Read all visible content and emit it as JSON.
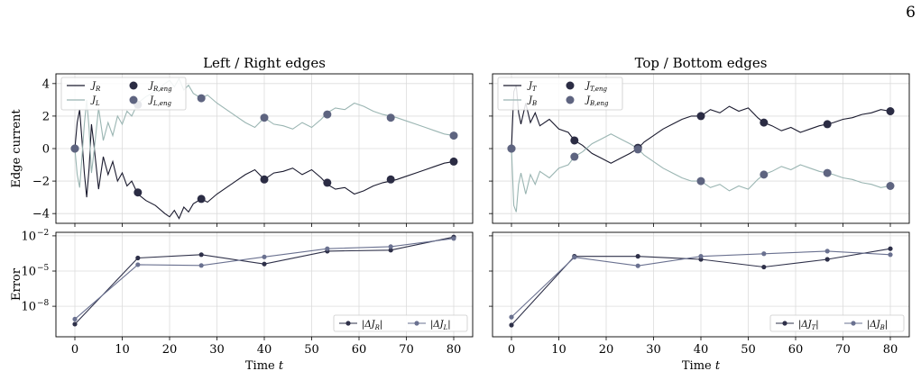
{
  "page_number": "6",
  "colors": {
    "series_dark": "#1a1a2e",
    "series_light": "#9ab5b2",
    "eng_dark": "#2b2c44",
    "eng_light": "#5e6480",
    "err_dark": "#2e3049",
    "err_light": "#6a7190",
    "grid": "#dcdcdc"
  },
  "chart_data": [
    {
      "type": "line",
      "panel": "top-left",
      "title": "Left / Right edges",
      "ylabel": "Edge current",
      "xlim": [
        -4,
        84
      ],
      "ylim": [
        -4.6,
        4.6
      ],
      "yticks": [
        -4,
        -2,
        0,
        2,
        4
      ],
      "ytick_labels": [
        "−4",
        "−2",
        "0",
        "2",
        "4"
      ],
      "grid": true,
      "legend_position": "top-left",
      "series": [
        {
          "name": "J_R",
          "label_main": "J",
          "label_sub": "R",
          "style": "line",
          "color_key": "series_dark",
          "x": [
            0,
            0.5,
            1,
            1.5,
            2,
            2.5,
            3,
            3.5,
            4,
            5,
            6,
            7,
            8,
            9,
            10,
            11,
            12,
            13.3,
            15,
            17,
            19,
            20,
            21,
            22,
            23,
            24,
            25,
            26.7,
            28,
            30,
            32,
            34,
            36,
            38,
            40,
            42,
            44,
            46,
            48,
            50,
            52,
            53.3,
            55,
            57,
            59,
            61,
            63,
            65,
            66.7,
            68,
            70,
            72,
            74,
            76,
            78,
            80
          ],
          "y": [
            0,
            1.6,
            2.4,
            0.5,
            -1.5,
            -3.0,
            -1.2,
            1.5,
            0.3,
            -2.5,
            -0.5,
            -1.6,
            -0.8,
            -2.0,
            -1.5,
            -2.3,
            -2.0,
            -2.8,
            -3.2,
            -3.5,
            -4.0,
            -4.2,
            -3.8,
            -4.3,
            -3.6,
            -3.9,
            -3.4,
            -3.1,
            -3.3,
            -2.8,
            -2.4,
            -2.0,
            -1.6,
            -1.3,
            -1.9,
            -1.5,
            -1.4,
            -1.2,
            -1.6,
            -1.3,
            -1.8,
            -2.2,
            -2.5,
            -2.4,
            -2.8,
            -2.6,
            -2.3,
            -2.1,
            -2.0,
            -1.9,
            -1.7,
            -1.5,
            -1.3,
            -1.1,
            -0.9,
            -0.8
          ]
        },
        {
          "name": "J_L",
          "label_main": "J",
          "label_sub": "L",
          "style": "line",
          "color_key": "series_light",
          "x": [
            0,
            0.5,
            1,
            1.5,
            2,
            2.5,
            3,
            3.5,
            4,
            5,
            6,
            7,
            8,
            9,
            10,
            11,
            12,
            13.3,
            15,
            17,
            19,
            20,
            21,
            22,
            23,
            24,
            25,
            26.7,
            28,
            30,
            32,
            34,
            36,
            38,
            40,
            42,
            44,
            46,
            48,
            50,
            52,
            53.3,
            55,
            57,
            59,
            61,
            63,
            65,
            66.7,
            68,
            70,
            72,
            74,
            76,
            78,
            80
          ],
          "y": [
            0,
            -1.6,
            -2.4,
            -0.5,
            1.5,
            3.0,
            1.2,
            -1.5,
            -0.3,
            2.5,
            0.5,
            1.6,
            0.8,
            2.0,
            1.5,
            2.3,
            2.0,
            2.8,
            3.2,
            3.5,
            4.0,
            4.2,
            3.8,
            4.3,
            3.6,
            3.9,
            3.4,
            3.1,
            3.3,
            2.8,
            2.4,
            2.0,
            1.6,
            1.3,
            1.9,
            1.5,
            1.4,
            1.2,
            1.6,
            1.3,
            1.8,
            2.2,
            2.5,
            2.4,
            2.8,
            2.6,
            2.3,
            2.1,
            2.0,
            1.9,
            1.7,
            1.5,
            1.3,
            1.1,
            0.9,
            0.8
          ]
        },
        {
          "name": "J_R,eng",
          "label_main": "J",
          "label_sub": "R,eng",
          "style": "marker",
          "color_key": "eng_dark",
          "x": [
            0,
            13.3,
            26.7,
            40,
            53.3,
            66.7,
            80
          ],
          "y": [
            0,
            -2.7,
            -3.1,
            -1.9,
            -2.1,
            -1.9,
            -0.8
          ]
        },
        {
          "name": "J_L,eng",
          "label_main": "J",
          "label_sub": "L,eng",
          "style": "marker",
          "color_key": "eng_light",
          "x": [
            0,
            13.3,
            26.7,
            40,
            53.3,
            66.7,
            80
          ],
          "y": [
            0,
            2.7,
            3.1,
            1.9,
            2.1,
            1.9,
            0.8
          ]
        }
      ]
    },
    {
      "type": "line",
      "panel": "top-right",
      "title": "Top / Bottom edges",
      "xlim": [
        -4,
        84
      ],
      "ylim": [
        -4.6,
        4.6
      ],
      "yticks": [
        -4,
        -2,
        0,
        2,
        4
      ],
      "grid": true,
      "legend_position": "top-left",
      "series": [
        {
          "name": "J_T",
          "label_main": "J",
          "label_sub": "T",
          "style": "line",
          "color_key": "series_dark",
          "x": [
            0,
            0.5,
            1,
            1.5,
            2,
            3,
            4,
            5,
            6,
            8,
            10,
            12,
            13.3,
            15,
            17,
            19,
            21,
            23,
            25,
            26.7,
            28,
            30,
            32,
            34,
            36,
            38,
            40,
            42,
            44,
            46,
            48,
            50,
            52,
            53.3,
            55,
            57,
            59,
            61,
            63,
            65,
            66.7,
            68,
            70,
            72,
            74,
            76,
            78,
            80
          ],
          "y": [
            0,
            3.5,
            3.9,
            2.2,
            1.5,
            2.8,
            1.6,
            2.2,
            1.4,
            1.8,
            1.2,
            1.0,
            0.5,
            0.2,
            -0.3,
            -0.6,
            -0.9,
            -0.6,
            -0.3,
            0.0,
            0.4,
            0.8,
            1.2,
            1.5,
            1.8,
            2.0,
            2.0,
            2.4,
            2.2,
            2.6,
            2.3,
            2.5,
            1.9,
            1.6,
            1.4,
            1.1,
            1.3,
            1.0,
            1.2,
            1.4,
            1.5,
            1.6,
            1.8,
            1.9,
            2.1,
            2.2,
            2.4,
            2.3
          ]
        },
        {
          "name": "J_B",
          "label_main": "J",
          "label_sub": "B",
          "style": "line",
          "color_key": "series_light",
          "x": [
            0,
            0.5,
            1,
            1.5,
            2,
            3,
            4,
            5,
            6,
            8,
            10,
            12,
            13.3,
            15,
            17,
            19,
            21,
            23,
            25,
            26.7,
            28,
            30,
            32,
            34,
            36,
            38,
            40,
            42,
            44,
            46,
            48,
            50,
            52,
            53.3,
            55,
            57,
            59,
            61,
            63,
            65,
            66.7,
            68,
            70,
            72,
            74,
            76,
            78,
            80
          ],
          "y": [
            0,
            -3.5,
            -3.9,
            -2.2,
            -1.5,
            -2.8,
            -1.6,
            -2.2,
            -1.4,
            -1.8,
            -1.2,
            -1.0,
            -0.5,
            -0.2,
            0.3,
            0.6,
            0.9,
            0.6,
            0.3,
            0.0,
            -0.4,
            -0.8,
            -1.2,
            -1.5,
            -1.8,
            -2.0,
            -2.0,
            -2.4,
            -2.2,
            -2.6,
            -2.3,
            -2.5,
            -1.9,
            -1.6,
            -1.4,
            -1.1,
            -1.3,
            -1.0,
            -1.2,
            -1.4,
            -1.5,
            -1.6,
            -1.8,
            -1.9,
            -2.1,
            -2.2,
            -2.4,
            -2.3
          ]
        },
        {
          "name": "J_T,eng",
          "label_main": "J",
          "label_sub": "T,eng",
          "style": "marker",
          "color_key": "eng_dark",
          "x": [
            0,
            13.3,
            26.7,
            40,
            53.3,
            66.7,
            80
          ],
          "y": [
            0,
            0.5,
            0.05,
            2.0,
            1.6,
            1.5,
            2.3
          ]
        },
        {
          "name": "J_B,eng",
          "label_main": "J",
          "label_sub": "B,eng",
          "style": "marker",
          "color_key": "eng_light",
          "x": [
            0,
            13.3,
            26.7,
            40,
            53.3,
            66.7,
            80
          ],
          "y": [
            0,
            -0.5,
            -0.05,
            -2.0,
            -1.6,
            -1.5,
            -2.3
          ]
        }
      ]
    },
    {
      "type": "line",
      "panel": "bottom-left",
      "xlabel": "Time  t",
      "ylabel": "Error",
      "yscale": "log",
      "xlim": [
        -4,
        84
      ],
      "log_ylim": [
        -10.6,
        -1.7
      ],
      "yticks_exp": [
        -8,
        -5,
        -2
      ],
      "xticks": [
        0,
        10,
        20,
        30,
        40,
        50,
        60,
        70,
        80
      ],
      "grid": true,
      "legend_position": "bottom-right",
      "series": [
        {
          "name": "|ΔJ_R|",
          "label_main": "|ΔJ",
          "label_sub": "R",
          "label_end": "|",
          "color_key": "err_dark",
          "x": [
            0,
            13.3,
            26.7,
            40,
            53.3,
            66.7,
            80
          ],
          "y": [
            3e-10,
            0.00013,
            0.00025,
            4e-05,
            0.0005,
            0.0006,
            0.008
          ]
        },
        {
          "name": "|ΔJ_L|",
          "label_main": "|ΔJ",
          "label_sub": "L",
          "label_end": "|",
          "color_key": "err_light",
          "x": [
            0,
            13.3,
            26.7,
            40,
            53.3,
            66.7,
            80
          ],
          "y": [
            8e-10,
            3.5e-05,
            3e-05,
            0.00016,
            0.0008,
            0.0012,
            0.006
          ]
        }
      ]
    },
    {
      "type": "line",
      "panel": "bottom-right",
      "xlabel": "Time  t",
      "yscale": "log",
      "xlim": [
        -4,
        84
      ],
      "log_ylim": [
        -10.6,
        -1.7
      ],
      "yticks_exp": [
        -8,
        -5,
        -2
      ],
      "xticks": [
        0,
        10,
        20,
        30,
        40,
        50,
        60,
        70,
        80
      ],
      "grid": true,
      "legend_position": "bottom-right",
      "series": [
        {
          "name": "|ΔJ_T|",
          "label_main": "|ΔJ",
          "label_sub": "T",
          "label_end": "|",
          "color_key": "err_dark",
          "x": [
            0,
            13.3,
            26.7,
            40,
            53.3,
            66.7,
            80
          ],
          "y": [
            2.5e-10,
            0.00018,
            0.00018,
            0.0001,
            2.2e-05,
            0.0001,
            0.0008
          ]
        },
        {
          "name": "|ΔJ_B|",
          "label_main": "|ΔJ",
          "label_sub": "B",
          "label_end": "|",
          "color_key": "err_light",
          "x": [
            0,
            13.3,
            26.7,
            40,
            53.3,
            66.7,
            80
          ],
          "y": [
            1.2e-09,
            0.00015,
            2.8e-05,
            0.00018,
            0.0003,
            0.0005,
            0.00025
          ]
        }
      ]
    }
  ]
}
